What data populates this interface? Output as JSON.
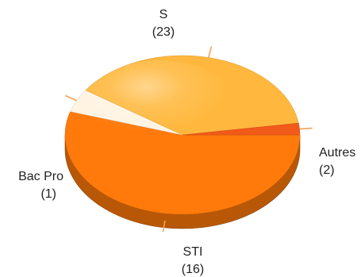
{
  "chart_data": {
    "type": "pie",
    "style": "3d",
    "categories": [
      "S",
      "Autres",
      "STI",
      "Bac Pro"
    ],
    "values": [
      23,
      2,
      16,
      1
    ],
    "value_labels": [
      "(23)",
      "(2)",
      "(16)",
      "(1)"
    ],
    "colors": [
      "#ff7a0a",
      "#fff4e2",
      "#ffb83d",
      "#f25a1a"
    ],
    "legend": "none"
  },
  "colors": {
    "leader_line": "#f0a25a",
    "label_text": "#222222"
  }
}
